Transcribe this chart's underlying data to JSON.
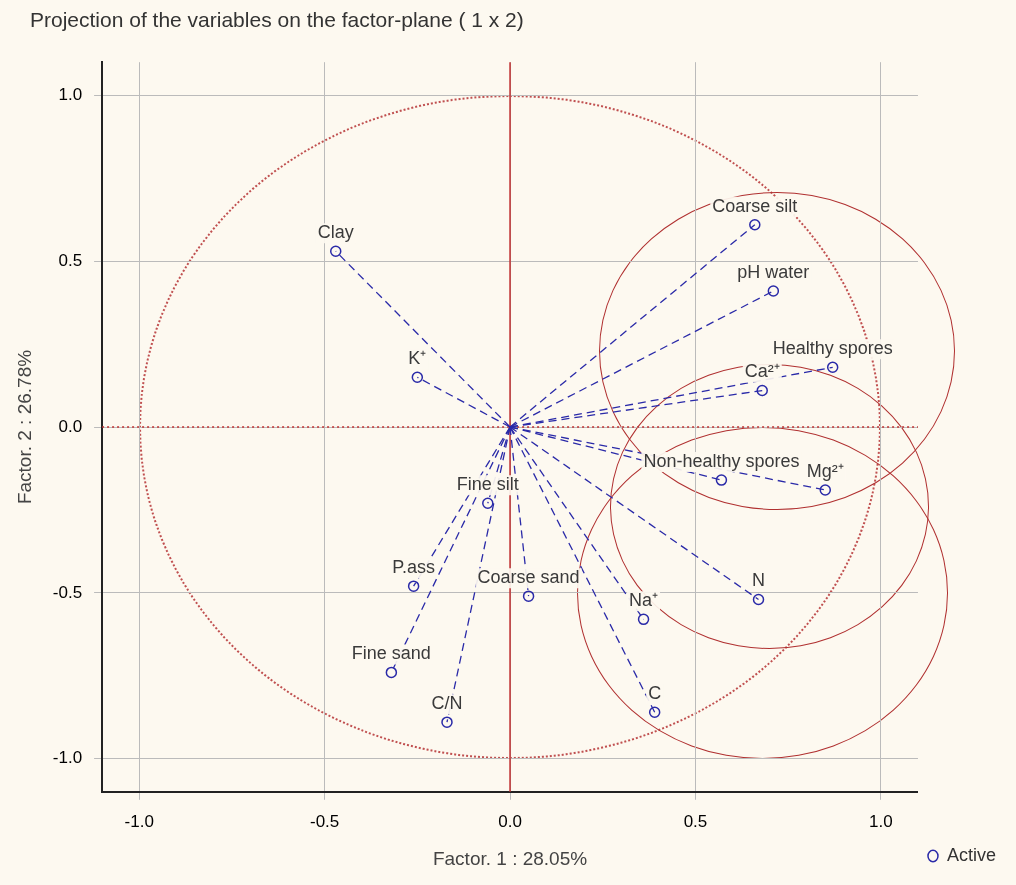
{
  "chart_data": {
    "type": "scatter",
    "title": "Projection of the variables on the factor-plane ( 1 x 2)",
    "xlabel": "Factor. 1 : 28.05%",
    "ylabel": "Factor. 2 : 26.78%",
    "xlim": [
      -1.1,
      1.1
    ],
    "ylim": [
      -1.1,
      1.1
    ],
    "xticks": [
      {
        "value": -1,
        "label": "-1.0"
      },
      {
        "value": -0.5,
        "label": "-0.5"
      },
      {
        "value": 0,
        "label": "0.0"
      },
      {
        "value": 0.5,
        "label": "0.5"
      },
      {
        "value": 1,
        "label": "1.0"
      }
    ],
    "yticks": [
      {
        "value": -1,
        "label": "-1.0"
      },
      {
        "value": -0.5,
        "label": "-0.5"
      },
      {
        "value": 0,
        "label": "0.0"
      },
      {
        "value": 0.5,
        "label": "0.5"
      },
      {
        "value": 1,
        "label": "1.0"
      }
    ],
    "grid": true,
    "legend": "bottom right",
    "marker": "circle",
    "line_style": "dashed",
    "series": [
      {
        "name": "Active",
        "color": "#2a2aa8",
        "x": [
          -0.47,
          -0.25,
          0.66,
          0.71,
          0.87,
          0.68,
          0.57,
          0.85,
          0.67,
          -0.06,
          -0.26,
          0.05,
          0.36,
          -0.32,
          -0.17,
          0.39
        ],
        "values": [
          0.53,
          0.15,
          0.61,
          0.41,
          0.18,
          0.11,
          -0.16,
          -0.19,
          -0.52,
          -0.23,
          -0.48,
          -0.51,
          -0.58,
          -0.74,
          -0.89,
          -0.86
        ]
      }
    ],
    "ref_lines": [
      {
        "axis": "x",
        "value": 0,
        "color": "#c03030",
        "line_style": "solid"
      },
      {
        "axis": "y",
        "value": 0,
        "color": "#c03030",
        "line_style": "dotted"
      }
    ],
    "annotations": [
      {
        "text": "Clay",
        "x": -0.47,
        "y": 0.53
      },
      {
        "text": "K⁺",
        "x": -0.25,
        "y": 0.15
      },
      {
        "text": "Coarse silt",
        "x": 0.66,
        "y": 0.61
      },
      {
        "text": "pH water",
        "x": 0.71,
        "y": 0.41
      },
      {
        "text": "Healthy spores",
        "x": 0.87,
        "y": 0.18
      },
      {
        "text": "Ca²⁺",
        "x": 0.68,
        "y": 0.11
      },
      {
        "text": "Non-healthy spores",
        "x": 0.57,
        "y": -0.16
      },
      {
        "text": "Mg²⁺",
        "x": 0.85,
        "y": -0.19
      },
      {
        "text": "N",
        "x": 0.67,
        "y": -0.52
      },
      {
        "text": "Fine silt",
        "x": -0.06,
        "y": -0.23
      },
      {
        "text": "P.ass",
        "x": -0.26,
        "y": -0.48
      },
      {
        "text": "Coarse sand",
        "x": 0.05,
        "y": -0.51
      },
      {
        "text": "Na⁺",
        "x": 0.36,
        "y": -0.58
      },
      {
        "text": "Fine sand",
        "x": -0.32,
        "y": -0.74
      },
      {
        "text": "C/N",
        "x": -0.17,
        "y": -0.89
      },
      {
        "text": "C",
        "x": 0.39,
        "y": -0.86
      }
    ]
  }
}
